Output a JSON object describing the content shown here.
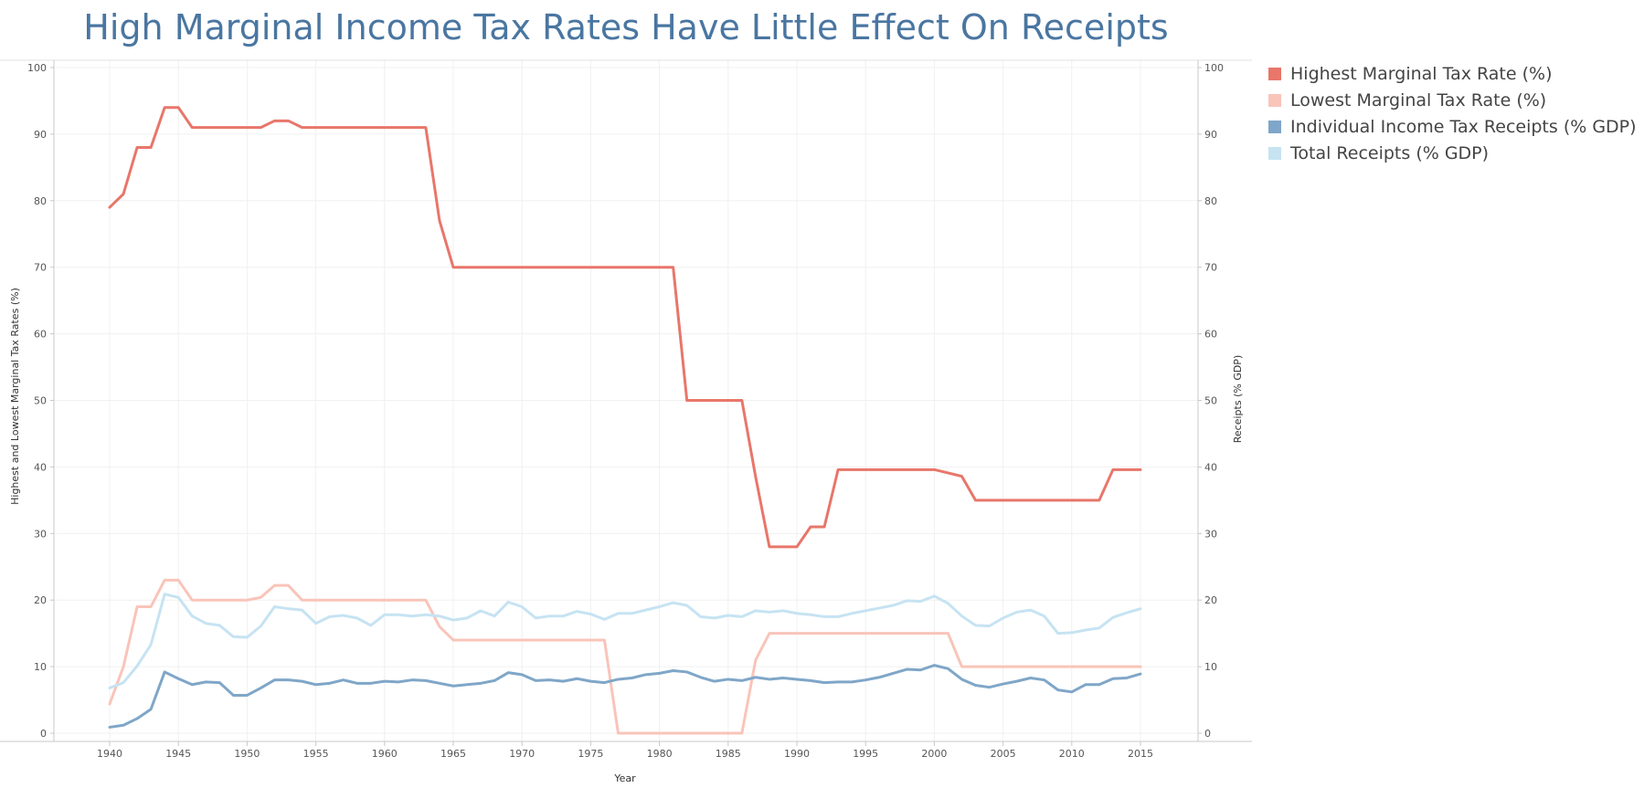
{
  "chart_data": {
    "type": "line",
    "title": "High Marginal Income Tax Rates Have Little Effect On Receipts",
    "xlabel": "Year",
    "ylabel_left": "Highest and Lowest Marginal Tax Rates (%)",
    "ylabel_right": "Receipts (% GDP)",
    "xlim": [
      1940,
      2015
    ],
    "ylim": [
      0,
      100
    ],
    "x_ticks": [
      1940,
      1945,
      1950,
      1955,
      1960,
      1965,
      1970,
      1975,
      1980,
      1985,
      1990,
      1995,
      2000,
      2005,
      2010,
      2015
    ],
    "y_ticks": [
      0,
      10,
      20,
      30,
      40,
      50,
      60,
      70,
      80,
      90,
      100
    ],
    "grid": true,
    "legend_position": "right",
    "x": [
      1940,
      1941,
      1942,
      1943,
      1944,
      1945,
      1946,
      1947,
      1948,
      1949,
      1950,
      1951,
      1952,
      1953,
      1954,
      1955,
      1956,
      1957,
      1958,
      1959,
      1960,
      1961,
      1962,
      1963,
      1964,
      1965,
      1966,
      1967,
      1968,
      1969,
      1970,
      1971,
      1972,
      1973,
      1974,
      1975,
      1976,
      1977,
      1978,
      1979,
      1980,
      1981,
      1982,
      1983,
      1984,
      1985,
      1986,
      1987,
      1988,
      1989,
      1990,
      1991,
      1992,
      1993,
      1994,
      1995,
      1996,
      1997,
      1998,
      1999,
      2000,
      2001,
      2002,
      2003,
      2004,
      2005,
      2006,
      2007,
      2008,
      2009,
      2010,
      2011,
      2012,
      2013,
      2014,
      2015
    ],
    "series": [
      {
        "name": "Highest Marginal Tax Rate (%)",
        "color": "#e8766a",
        "values": [
          79,
          81,
          88,
          88,
          94,
          94,
          91,
          91,
          91,
          91,
          91,
          91,
          92,
          92,
          91,
          91,
          91,
          91,
          91,
          91,
          91,
          91,
          91,
          91,
          77,
          70,
          70,
          70,
          70,
          70,
          70,
          70,
          70,
          70,
          70,
          70,
          70,
          70,
          70,
          70,
          70,
          70,
          50,
          50,
          50,
          50,
          50,
          38.5,
          28,
          28,
          28,
          31,
          31,
          39.6,
          39.6,
          39.6,
          39.6,
          39.6,
          39.6,
          39.6,
          39.6,
          39.1,
          38.6,
          35,
          35,
          35,
          35,
          35,
          35,
          35,
          35,
          35,
          35,
          39.6,
          39.6,
          39.6
        ]
      },
      {
        "name": "Lowest Marginal Tax Rate (%)",
        "color": "#f9c4b9",
        "values": [
          4.4,
          10,
          19,
          19,
          23,
          23,
          20,
          20,
          20,
          20,
          20,
          20.4,
          22.2,
          22.2,
          20,
          20,
          20,
          20,
          20,
          20,
          20,
          20,
          20,
          20,
          16,
          14,
          14,
          14,
          14,
          14,
          14,
          14,
          14,
          14,
          14,
          14,
          14,
          0,
          0,
          0,
          0,
          0,
          0,
          0,
          0,
          0,
          0,
          11,
          15,
          15,
          15,
          15,
          15,
          15,
          15,
          15,
          15,
          15,
          15,
          15,
          15,
          15,
          10,
          10,
          10,
          10,
          10,
          10,
          10,
          10,
          10,
          10,
          10,
          10,
          10,
          10
        ]
      },
      {
        "name": "Individual Income Tax Receipts (% GDP)",
        "color": "#7fa6c8",
        "values": [
          0.9,
          1.2,
          2.2,
          3.6,
          9.2,
          8.2,
          7.3,
          7.7,
          7.6,
          5.7,
          5.7,
          6.8,
          8,
          8,
          7.8,
          7.3,
          7.5,
          8,
          7.5,
          7.5,
          7.8,
          7.7,
          8,
          7.9,
          7.5,
          7.1,
          7.3,
          7.5,
          7.9,
          9.1,
          8.8,
          7.9,
          8,
          7.8,
          8.2,
          7.8,
          7.6,
          8.1,
          8.3,
          8.8,
          9,
          9.4,
          9.2,
          8.4,
          7.8,
          8.1,
          7.9,
          8.4,
          8.1,
          8.3,
          8.1,
          7.9,
          7.6,
          7.7,
          7.7,
          8,
          8.4,
          9,
          9.6,
          9.5,
          10.2,
          9.7,
          8.1,
          7.2,
          6.9,
          7.4,
          7.8,
          8.3,
          8,
          6.5,
          6.2,
          7.3,
          7.3,
          8.2,
          8.3,
          8.9
        ]
      },
      {
        "name": "Total Receipts (% GDP)",
        "color": "#c6e3f2",
        "values": [
          6.8,
          7.6,
          10.1,
          13.3,
          20.9,
          20.4,
          17.6,
          16.5,
          16.2,
          14.5,
          14.4,
          16.1,
          19,
          18.7,
          18.5,
          16.5,
          17.5,
          17.7,
          17.3,
          16.2,
          17.8,
          17.8,
          17.6,
          17.8,
          17.6,
          17,
          17.3,
          18.4,
          17.6,
          19.7,
          19,
          17.3,
          17.6,
          17.6,
          18.3,
          17.9,
          17.1,
          18,
          18,
          18.5,
          19,
          19.6,
          19.2,
          17.5,
          17.3,
          17.7,
          17.5,
          18.4,
          18.2,
          18.4,
          18,
          17.8,
          17.5,
          17.5,
          18,
          18.4,
          18.8,
          19.2,
          19.9,
          19.8,
          20.6,
          19.5,
          17.6,
          16.2,
          16.1,
          17.3,
          18.2,
          18.5,
          17.6,
          15,
          15.1,
          15.5,
          15.8,
          17.4,
          18.1,
          18.7
        ]
      }
    ]
  }
}
